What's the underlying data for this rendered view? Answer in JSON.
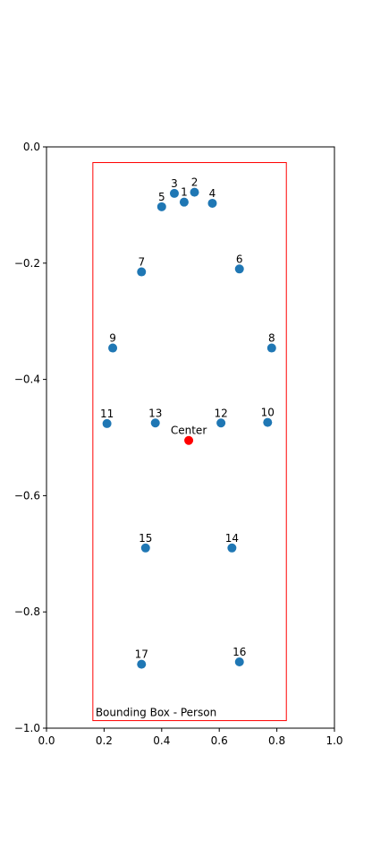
{
  "chart_data": {
    "type": "scatter",
    "xlim": [
      0.0,
      1.0
    ],
    "ylim": [
      -1.0,
      0.0
    ],
    "x_ticks": [
      "0.0",
      "0.2",
      "0.4",
      "0.6",
      "0.8",
      "1.0"
    ],
    "y_ticks": [
      "0.0",
      "−0.2",
      "−0.4",
      "−0.6",
      "−0.8",
      "−1.0"
    ],
    "x_tick_values": [
      0.0,
      0.2,
      0.4,
      0.6,
      0.8,
      1.0
    ],
    "y_tick_values": [
      0.0,
      -0.2,
      -0.4,
      -0.6,
      -0.8,
      -1.0
    ],
    "grid": false,
    "points": [
      {
        "label": "1",
        "x": 0.478,
        "y": -0.095
      },
      {
        "label": "2",
        "x": 0.514,
        "y": -0.078
      },
      {
        "label": "3",
        "x": 0.444,
        "y": -0.08
      },
      {
        "label": "4",
        "x": 0.576,
        "y": -0.097
      },
      {
        "label": "5",
        "x": 0.4,
        "y": -0.103
      },
      {
        "label": "6",
        "x": 0.67,
        "y": -0.21
      },
      {
        "label": "7",
        "x": 0.33,
        "y": -0.215
      },
      {
        "label": "8",
        "x": 0.782,
        "y": -0.346
      },
      {
        "label": "9",
        "x": 0.23,
        "y": -0.346
      },
      {
        "label": "10",
        "x": 0.768,
        "y": -0.474
      },
      {
        "label": "11",
        "x": 0.21,
        "y": -0.476
      },
      {
        "label": "12",
        "x": 0.606,
        "y": -0.475
      },
      {
        "label": "13",
        "x": 0.378,
        "y": -0.475
      },
      {
        "label": "14",
        "x": 0.644,
        "y": -0.69
      },
      {
        "label": "15",
        "x": 0.344,
        "y": -0.69
      },
      {
        "label": "16",
        "x": 0.67,
        "y": -0.886
      },
      {
        "label": "17",
        "x": 0.33,
        "y": -0.89
      }
    ],
    "point_color": "#1f77b4",
    "center": {
      "label": "Center",
      "x": 0.494,
      "y": -0.505,
      "color": "#ff0000"
    },
    "bounding_box": {
      "label": "Bounding Box - Person",
      "x_min": 0.161,
      "x_max": 0.833,
      "y_min": -0.987,
      "y_max": -0.027,
      "color": "#ff0000"
    }
  }
}
